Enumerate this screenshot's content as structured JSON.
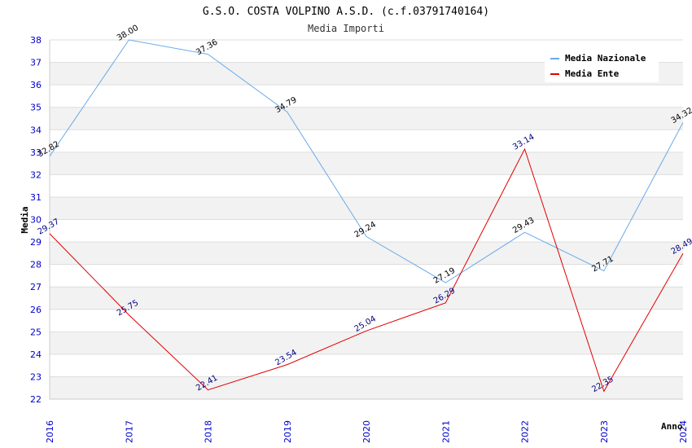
{
  "chart_data": {
    "type": "line",
    "title": "G.S.O. COSTA VOLPINO A.S.D. (c.f.03791740164)",
    "subtitle": "Media Importi",
    "xlabel": "Anno",
    "ylabel": "Media",
    "x": [
      "2016",
      "2017",
      "2018",
      "2019",
      "2020",
      "2021",
      "2022",
      "2023",
      "2024"
    ],
    "ylim": [
      22,
      38
    ],
    "yticks": [
      "22",
      "23",
      "24",
      "25",
      "26",
      "27",
      "28",
      "29",
      "30",
      "31",
      "32",
      "33",
      "34",
      "35",
      "36",
      "37",
      "38"
    ],
    "grid": true,
    "legend_position": "top-right",
    "series": [
      {
        "name": "Media Nazionale",
        "color": "#6aaae8",
        "label_color": "#000000",
        "values": [
          32.82,
          38.0,
          37.36,
          34.79,
          29.24,
          27.19,
          29.43,
          27.71,
          34.32
        ],
        "labels": [
          "32.82",
          "38.00",
          "37.36",
          "34.79",
          "29.24",
          "27.19",
          "29.43",
          "27.71",
          "34.32"
        ]
      },
      {
        "name": "Media Ente",
        "color": "#e00000",
        "label_color": "#000080",
        "values": [
          29.37,
          25.75,
          22.41,
          23.54,
          25.04,
          26.29,
          33.14,
          22.35,
          28.49
        ],
        "labels": [
          "29.37",
          "25.75",
          "22.41",
          "23.54",
          "25.04",
          "26.29",
          "33.14",
          "22.35",
          "28.49"
        ]
      }
    ]
  }
}
